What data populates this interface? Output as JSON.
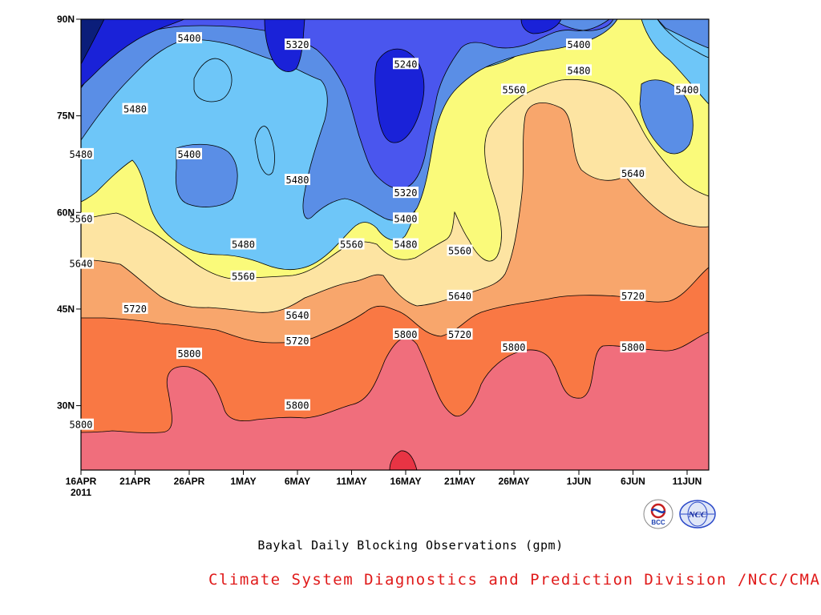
{
  "chart_data": {
    "type": "heatmap",
    "subtype": "filled-contour",
    "title": "Baykal Daily Blocking Observations (gpm)",
    "x_ticks": [
      "16APR",
      "21APR",
      "26APR",
      "1MAY",
      "6MAY",
      "11MAY",
      "16MAY",
      "21MAY",
      "26MAY",
      "1JUN",
      "6JUN",
      "11JUN"
    ],
    "x_year": "2011",
    "y_ticks": [
      "30N",
      "45N",
      "60N",
      "75N",
      "90N"
    ],
    "y_tick_values": [
      30,
      45,
      60,
      75,
      90
    ],
    "x_range": [
      "16APR 2011",
      "13JUN 2011"
    ],
    "y_range": [
      20,
      90
    ],
    "contour_levels": [
      5240,
      5320,
      5400,
      5480,
      5560,
      5640,
      5720,
      5800,
      5880
    ],
    "fill_colors": [
      "#0b1e7a",
      "#1a22d8",
      "#4a56ee",
      "#5a8ee6",
      "#6ec6f8",
      "#fafa7a",
      "#fde4a2",
      "#f8a66c",
      "#f97844",
      "#f06e7c",
      "#e83444"
    ],
    "contour_labels": [
      {
        "value": "5400",
        "date": "26APR",
        "lat": 87
      },
      {
        "value": "5320",
        "date": "6MAY",
        "lat": 86
      },
      {
        "value": "5240",
        "date": "16MAY",
        "lat": 83
      },
      {
        "value": "5400",
        "date": "1JUN",
        "lat": 86
      },
      {
        "value": "5480",
        "date": "1JUN",
        "lat": 82
      },
      {
        "value": "5560",
        "date": "26MAY",
        "lat": 79
      },
      {
        "value": "5400",
        "date": "11JUN",
        "lat": 79
      },
      {
        "value": "5480",
        "date": "21APR",
        "lat": 76
      },
      {
        "value": "5480",
        "date": "16APR",
        "lat": 69
      },
      {
        "value": "5400",
        "date": "26APR",
        "lat": 69
      },
      {
        "value": "5480",
        "date": "6MAY",
        "lat": 65
      },
      {
        "value": "5640",
        "date": "6JUN",
        "lat": 66
      },
      {
        "value": "5320",
        "date": "16MAY",
        "lat": 63
      },
      {
        "value": "5560",
        "date": "16APR",
        "lat": 59
      },
      {
        "value": "5400",
        "date": "16MAY",
        "lat": 59
      },
      {
        "value": "5480",
        "date": "1MAY",
        "lat": 55
      },
      {
        "value": "5560",
        "date": "11MAY",
        "lat": 55
      },
      {
        "value": "5480",
        "date": "16MAY",
        "lat": 55
      },
      {
        "value": "5560",
        "date": "21MAY",
        "lat": 54
      },
      {
        "value": "5640",
        "date": "16APR",
        "lat": 52
      },
      {
        "value": "5560",
        "date": "1MAY",
        "lat": 50
      },
      {
        "value": "5640",
        "date": "21MAY",
        "lat": 47
      },
      {
        "value": "5720",
        "date": "6JUN",
        "lat": 47
      },
      {
        "value": "5720",
        "date": "21APR",
        "lat": 45
      },
      {
        "value": "5640",
        "date": "6MAY",
        "lat": 44
      },
      {
        "value": "5800",
        "date": "16MAY",
        "lat": 41
      },
      {
        "value": "5720",
        "date": "21MAY",
        "lat": 41
      },
      {
        "value": "5720",
        "date": "6MAY",
        "lat": 40
      },
      {
        "value": "5800",
        "date": "26MAY",
        "lat": 39
      },
      {
        "value": "5800",
        "date": "6JUN",
        "lat": 39
      },
      {
        "value": "5800",
        "date": "26APR",
        "lat": 38
      },
      {
        "value": "5800",
        "date": "6MAY",
        "lat": 30
      },
      {
        "value": "5800",
        "date": "16APR",
        "lat": 27
      }
    ],
    "grid": false,
    "legend": "none"
  },
  "caption": "Baykal Daily Blocking Observations (gpm)",
  "credit": "Climate System Diagnostics and Prediction Division /NCC/CMA",
  "logos": {
    "left": "BCC",
    "right": "NCC"
  }
}
